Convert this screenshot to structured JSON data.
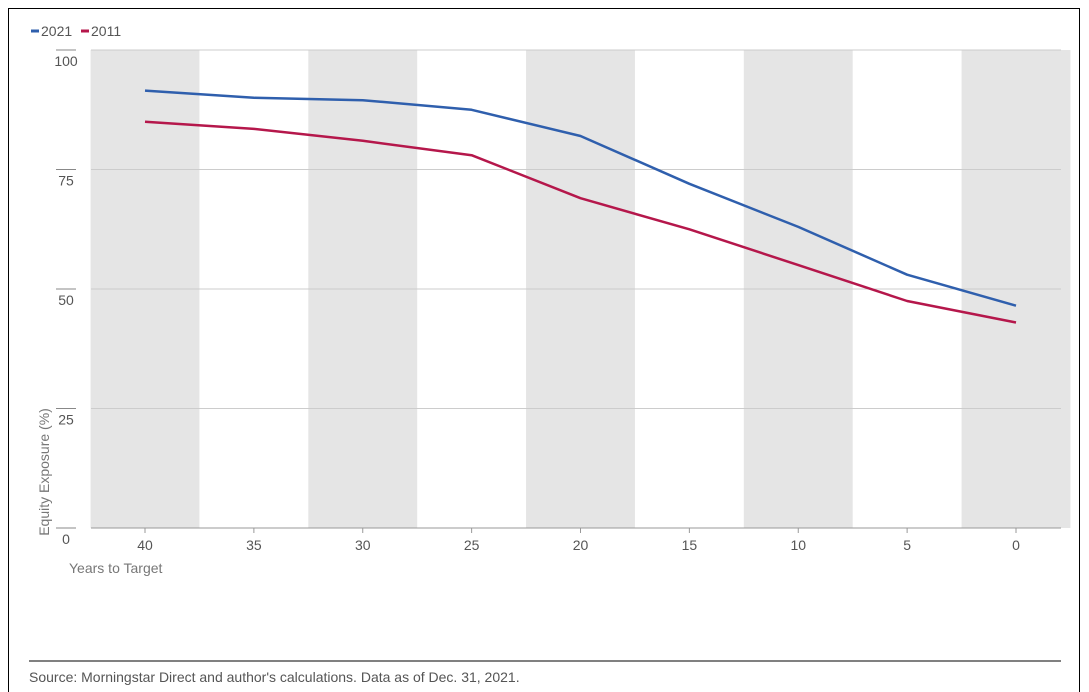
{
  "chart_data": {
    "type": "line",
    "x": [
      40,
      35,
      30,
      25,
      20,
      15,
      10,
      5,
      0
    ],
    "series": [
      {
        "name": "2021",
        "color": "#2f5fad",
        "values": [
          91.5,
          90,
          89.5,
          87.5,
          82,
          72,
          63,
          53,
          46.5
        ]
      },
      {
        "name": "2011",
        "color": "#b5174b",
        "values": [
          85,
          83.5,
          81,
          78,
          69,
          62.5,
          55,
          47.5,
          43
        ]
      }
    ],
    "xlabel": "Years to Target",
    "ylabel": "Equity Exposure (%)",
    "xticks": [
      "40",
      "35",
      "30",
      "25",
      "20",
      "15",
      "10",
      "5",
      "0"
    ],
    "yticks": [
      "0",
      "25",
      "50",
      "75",
      "100"
    ],
    "ylim": [
      0,
      100
    ],
    "xlim": [
      40,
      0
    ],
    "grid": true,
    "legend_position": "top-left",
    "band_color": "#e5e5e5"
  },
  "source_note": "Source: Morningstar Direct and author's calculations. Data as of Dec. 31, 2021."
}
